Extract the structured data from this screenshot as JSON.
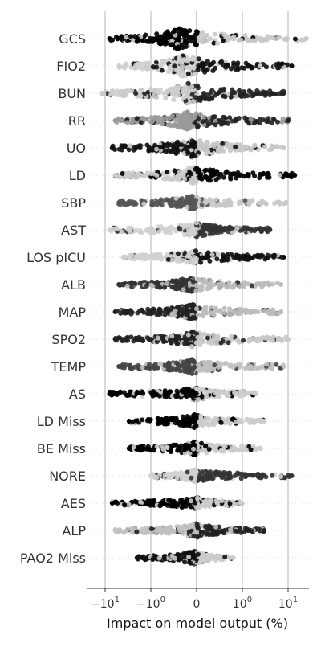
{
  "chart_data": {
    "type": "scatter",
    "subtype": "beeswarm",
    "xlabel": "Impact on model output (%)",
    "x_scale": "symlog",
    "xlim": [
      -30,
      30
    ],
    "x_ticks": [
      {
        "value": -10,
        "label": "−10",
        "exp": "1"
      },
      {
        "value": -1,
        "label": "−10",
        "exp": "0"
      },
      {
        "value": 0,
        "label": "0",
        "exp": ""
      },
      {
        "value": 1,
        "label": "10",
        "exp": "0"
      },
      {
        "value": 10,
        "label": "10",
        "exp": "1"
      }
    ],
    "features": [
      {
        "name": "GCS",
        "neg_min": -8,
        "pos_max": 25,
        "neg_color": "#000000",
        "pos_color": "#c8c8c8",
        "center": -0.4,
        "peak": 1.0
      },
      {
        "name": "FIO2",
        "neg_min": -5,
        "pos_max": 12,
        "neg_color": "#cfcfcf",
        "pos_color": "#111111",
        "center": -0.3,
        "peak": 1.0
      },
      {
        "name": "BUN",
        "neg_min": -12,
        "pos_max": 8,
        "neg_color": "#cccccc",
        "pos_color": "#222222",
        "center": -0.2,
        "peak": 1.0
      },
      {
        "name": "RR",
        "neg_min": -6,
        "pos_max": 10,
        "neg_color": "#9a9a9a",
        "pos_color": "#222222",
        "center": -0.2,
        "peak": 0.8
      },
      {
        "name": "UO",
        "neg_min": -7,
        "pos_max": 8,
        "neg_color": "#111111",
        "pos_color": "#c8c8c8",
        "center": -0.1,
        "peak": 0.85
      },
      {
        "name": "LD",
        "neg_min": -6,
        "pos_max": 14,
        "neg_color": "#cccccc",
        "pos_color": "#000000",
        "center": -0.1,
        "peak": 0.75
      },
      {
        "name": "SBP",
        "neg_min": -5,
        "pos_max": 9,
        "neg_color": "#555555",
        "pos_color": "#c8c8c8",
        "center": -0.1,
        "peak": 0.55
      },
      {
        "name": "AST",
        "neg_min": -8,
        "pos_max": 4,
        "neg_color": "#d0d0d0",
        "pos_color": "#333333",
        "center": 0.0,
        "peak": 0.6
      },
      {
        "name": "LOS pICU",
        "neg_min": -4,
        "pos_max": 8,
        "neg_color": "#d0d0d0",
        "pos_color": "#111111",
        "center": -0.05,
        "peak": 0.55
      },
      {
        "name": "ALB",
        "neg_min": -5,
        "pos_max": 7,
        "neg_color": "#333333",
        "pos_color": "#bbbbbb",
        "center": -0.1,
        "peak": 0.6
      },
      {
        "name": "MAP",
        "neg_min": -6,
        "pos_max": 7,
        "neg_color": "#222222",
        "pos_color": "#bbbbbb",
        "center": -0.1,
        "peak": 0.65
      },
      {
        "name": "SPO2",
        "neg_min": -6,
        "pos_max": 10,
        "neg_color": "#222222",
        "pos_color": "#c8c8c8",
        "center": -0.1,
        "peak": 0.65
      },
      {
        "name": "TEMP",
        "neg_min": -5,
        "pos_max": 8,
        "neg_color": "#444444",
        "pos_color": "#c0c0c0",
        "center": -0.1,
        "peak": 0.6
      },
      {
        "name": "AS",
        "neg_min": -8,
        "pos_max": 2,
        "neg_color": "#000000",
        "pos_color": "#cccccc",
        "center": 0.0,
        "peak": 0.55
      },
      {
        "name": "LD Miss",
        "neg_min": -3,
        "pos_max": 3,
        "neg_color": "#000000",
        "pos_color": "#cccccc",
        "center": -0.05,
        "peak": 0.55
      },
      {
        "name": "BE Miss",
        "neg_min": -3,
        "pos_max": 2.5,
        "neg_color": "#000000",
        "pos_color": "#cccccc",
        "center": -0.05,
        "peak": 0.55
      },
      {
        "name": "NORE",
        "neg_min": -1,
        "pos_max": 12,
        "neg_color": "#d0d0d0",
        "pos_color": "#333333",
        "center": -0.05,
        "peak": 0.5
      },
      {
        "name": "AES",
        "neg_min": -7,
        "pos_max": 1,
        "neg_color": "#000000",
        "pos_color": "#cccccc",
        "center": 0.0,
        "peak": 0.45
      },
      {
        "name": "ALP",
        "neg_min": -6,
        "pos_max": 3,
        "neg_color": "#c0c0c0",
        "pos_color": "#222222",
        "center": 0.0,
        "peak": 0.6
      },
      {
        "name": "PAO2 Miss",
        "neg_min": -2,
        "pos_max": 0.8,
        "neg_color": "#111111",
        "pos_color": "#cccccc",
        "center": -0.05,
        "peak": 0.55
      }
    ]
  }
}
